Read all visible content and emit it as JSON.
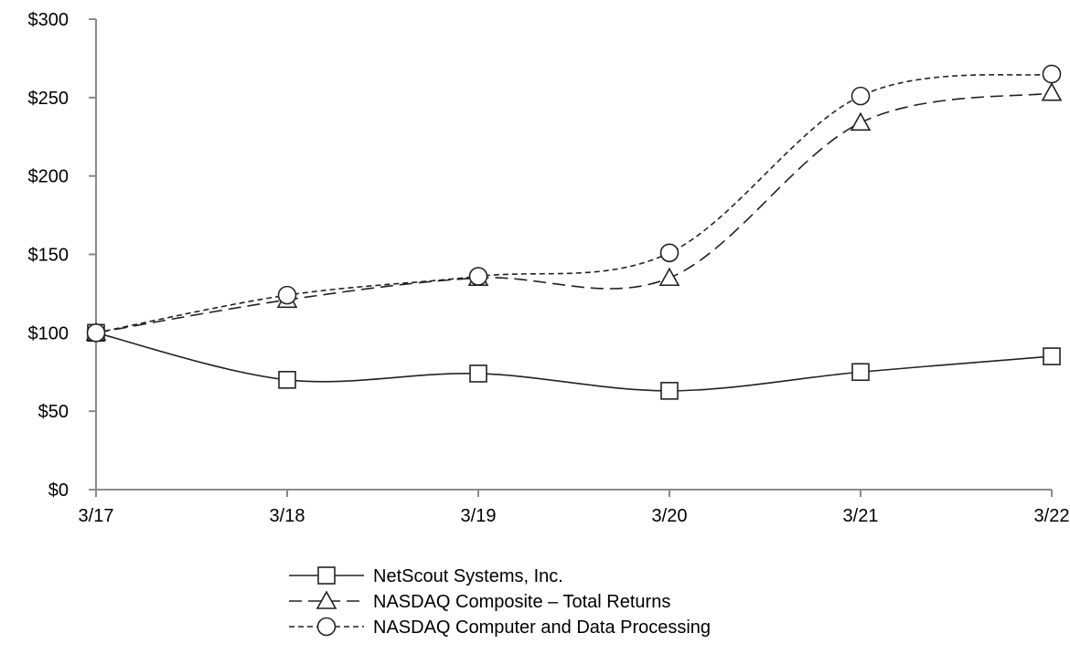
{
  "chart_data": {
    "type": "line",
    "title": "",
    "xlabel": "",
    "ylabel": "",
    "categories": [
      "3/17",
      "3/18",
      "3/19",
      "3/20",
      "3/21",
      "3/22"
    ],
    "ylim": [
      0,
      300
    ],
    "yticks": [
      0,
      50,
      100,
      150,
      200,
      250,
      300
    ],
    "ytick_labels": [
      "$0",
      "$50",
      "$100",
      "$150",
      "$200",
      "$250",
      "$300"
    ],
    "series": [
      {
        "name": "NetScout Systems, Inc.",
        "marker": "square",
        "dash": "solid",
        "values": [
          100,
          70,
          74,
          63,
          75,
          85
        ]
      },
      {
        "name": "NASDAQ Composite – Total Returns",
        "marker": "triangle",
        "dash": "long-dash",
        "values": [
          100,
          121,
          135,
          135,
          234,
          253
        ]
      },
      {
        "name": "NASDAQ Computer and Data Processing",
        "marker": "circle",
        "dash": "short-dash",
        "values": [
          100,
          124,
          136,
          151,
          251,
          265
        ]
      }
    ],
    "legend_position": "bottom-center",
    "grid": false
  }
}
